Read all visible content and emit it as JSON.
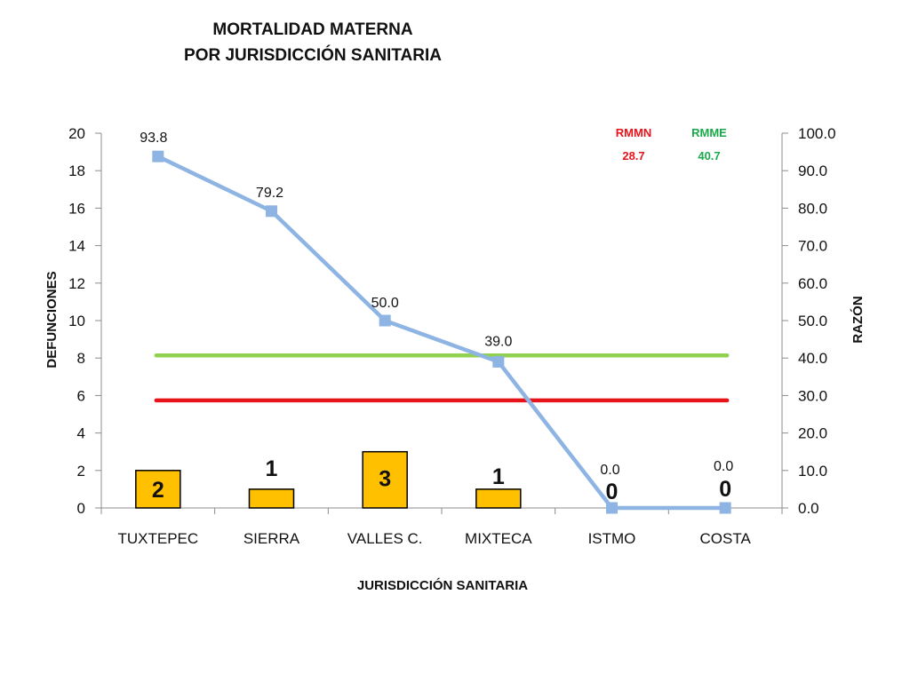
{
  "chart_data": {
    "type": "bar",
    "title_line1": "MORTALIDAD MATERNA",
    "title_line2": "POR JURISDICCIÓN SANITARIA",
    "xlabel": "JURISDICCIÓN  SANITARIA",
    "ylabel_left": "DEFUNCIONES",
    "ylabel_right": "RAZÓN",
    "categories": [
      "TUXTEPEC",
      "SIERRA",
      "VALLES C.",
      "MIXTECA",
      "ISTMO",
      "COSTA"
    ],
    "ylim_left": [
      0,
      20
    ],
    "left_ticks": [
      "0",
      "2",
      "4",
      "6",
      "8",
      "10",
      "12",
      "14",
      "16",
      "18",
      "20"
    ],
    "ylim_right": [
      0,
      100
    ],
    "right_ticks": [
      "0.0",
      "10.0",
      "20.0",
      "30.0",
      "40.0",
      "50.0",
      "60.0",
      "70.0",
      "80.0",
      "90.0",
      "100.0"
    ],
    "series": [
      {
        "name": "DEFUNCIONES",
        "type": "bar",
        "axis": "left",
        "values": [
          2,
          1,
          3,
          1,
          0,
          0
        ],
        "labels": [
          "2",
          "1",
          "3",
          "1",
          "0",
          "0"
        ],
        "color": "#FFC000"
      },
      {
        "name": "RAZÓN",
        "type": "line",
        "axis": "right",
        "values": [
          93.8,
          79.2,
          50.0,
          39.0,
          0.0,
          0.0
        ],
        "labels": [
          "93.8",
          "79.2",
          "50.0",
          "39.0",
          "0.0",
          "0.0"
        ],
        "color": "#8EB4E3"
      }
    ],
    "reference_lines": [
      {
        "name": "RMMN",
        "value": 28.7,
        "label": "28.7",
        "axis": "right",
        "color": "#E8141B"
      },
      {
        "name": "RMME",
        "value": 40.7,
        "label": "40.7",
        "axis": "right",
        "color": "#92D050",
        "text_color": "#1AAA4B"
      }
    ],
    "grid": false,
    "legend": "none"
  }
}
